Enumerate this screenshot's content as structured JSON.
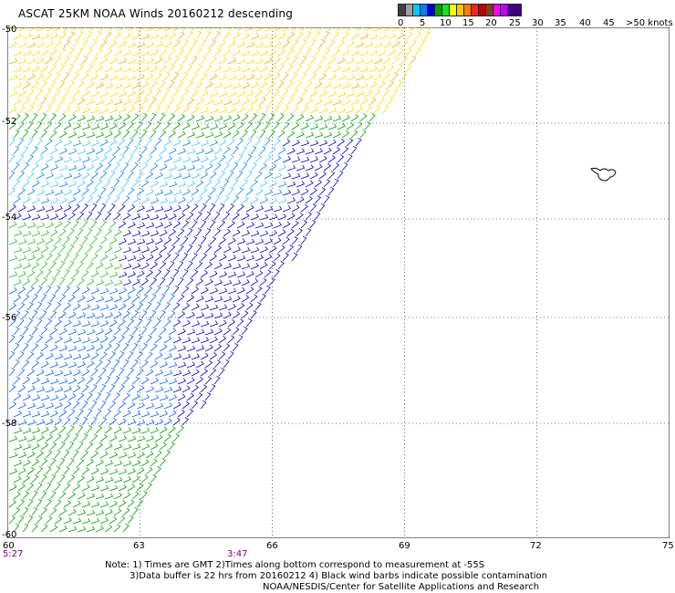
{
  "title": "ASCAT 25KM NOAA Winds 20160212 descending",
  "legend": {
    "colors": [
      "#404040",
      "#a0a0a0",
      "#00c8ff",
      "#0080ff",
      "#0000c8",
      "#00a000",
      "#20e020",
      "#ffff00",
      "#ffc800",
      "#ff8000",
      "#ff2020",
      "#c00000",
      "#804020",
      "#ff00ff",
      "#c000ff",
      "#400080"
    ],
    "labels": [
      "0",
      "5",
      "10",
      "15",
      "20",
      "25",
      "30",
      "35",
      "40",
      "45",
      ">50 knots"
    ]
  },
  "map": {
    "lat_labels": [
      "-50",
      "-52",
      "-54",
      "-56",
      "-58",
      "-60"
    ],
    "lon_labels": [
      "60",
      "63",
      "66",
      "69",
      "72",
      "75"
    ],
    "lon_min": 60,
    "lon_max": 75,
    "lat_top": -50,
    "lat_bottom": -60
  },
  "times": [
    "5:27",
    "3:47"
  ],
  "notes": {
    "line1": "Note: 1) Times are GMT 2)Times along bottom correspond to measurement at -55S",
    "line2": "3)Data buffer is 22 hrs from 20160212 4) Black wind barbs indicate possible contamination",
    "line3": "NOAA/NESDIS/Center for Satellite Applications and Research"
  },
  "icons": {
    "island": "island-outline-icon"
  }
}
